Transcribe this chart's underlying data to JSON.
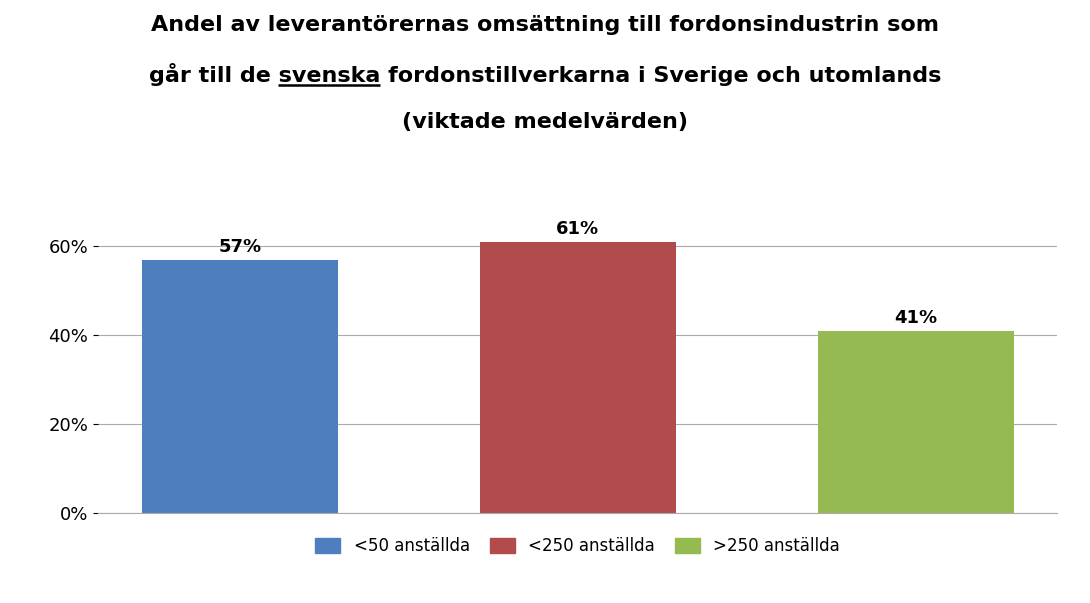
{
  "title_line1": "Andel av leverantörernas omsättning till fordonsindustrin som",
  "title_line2": "går till de svenska fordonstillverkarna i Sverige och utomlands",
  "title_line2_prefix": "går till de ",
  "title_line2_underlined": "svenska",
  "title_line2_suffix": " fordonstillverkarna i Sverige och utomlands",
  "title_line3": "(viktade medelvärden)",
  "categories": [
    "<50 anställda",
    "<250 anställda",
    ">250 anställda"
  ],
  "values": [
    0.57,
    0.61,
    0.41
  ],
  "bar_colors": [
    "#4F7EBE",
    "#B24C4C",
    "#96BA52"
  ],
  "bar_labels": [
    "57%",
    "61%",
    "41%"
  ],
  "yticks": [
    0.0,
    0.2,
    0.4,
    0.6
  ],
  "ytick_labels": [
    "0%",
    "20%",
    "40%",
    "60%"
  ],
  "ylim": [
    0,
    0.72
  ],
  "background_color": "#FFFFFF",
  "grid_color": "#AAAAAA",
  "legend_colors": [
    "#4F7EBE",
    "#B24C4C",
    "#96BA52"
  ],
  "legend_labels": [
    "<50 anställda",
    "<250 anställda",
    ">250 anställda"
  ],
  "bar_label_fontsize": 13,
  "title_fontsize": 16,
  "tick_fontsize": 13,
  "legend_fontsize": 12
}
